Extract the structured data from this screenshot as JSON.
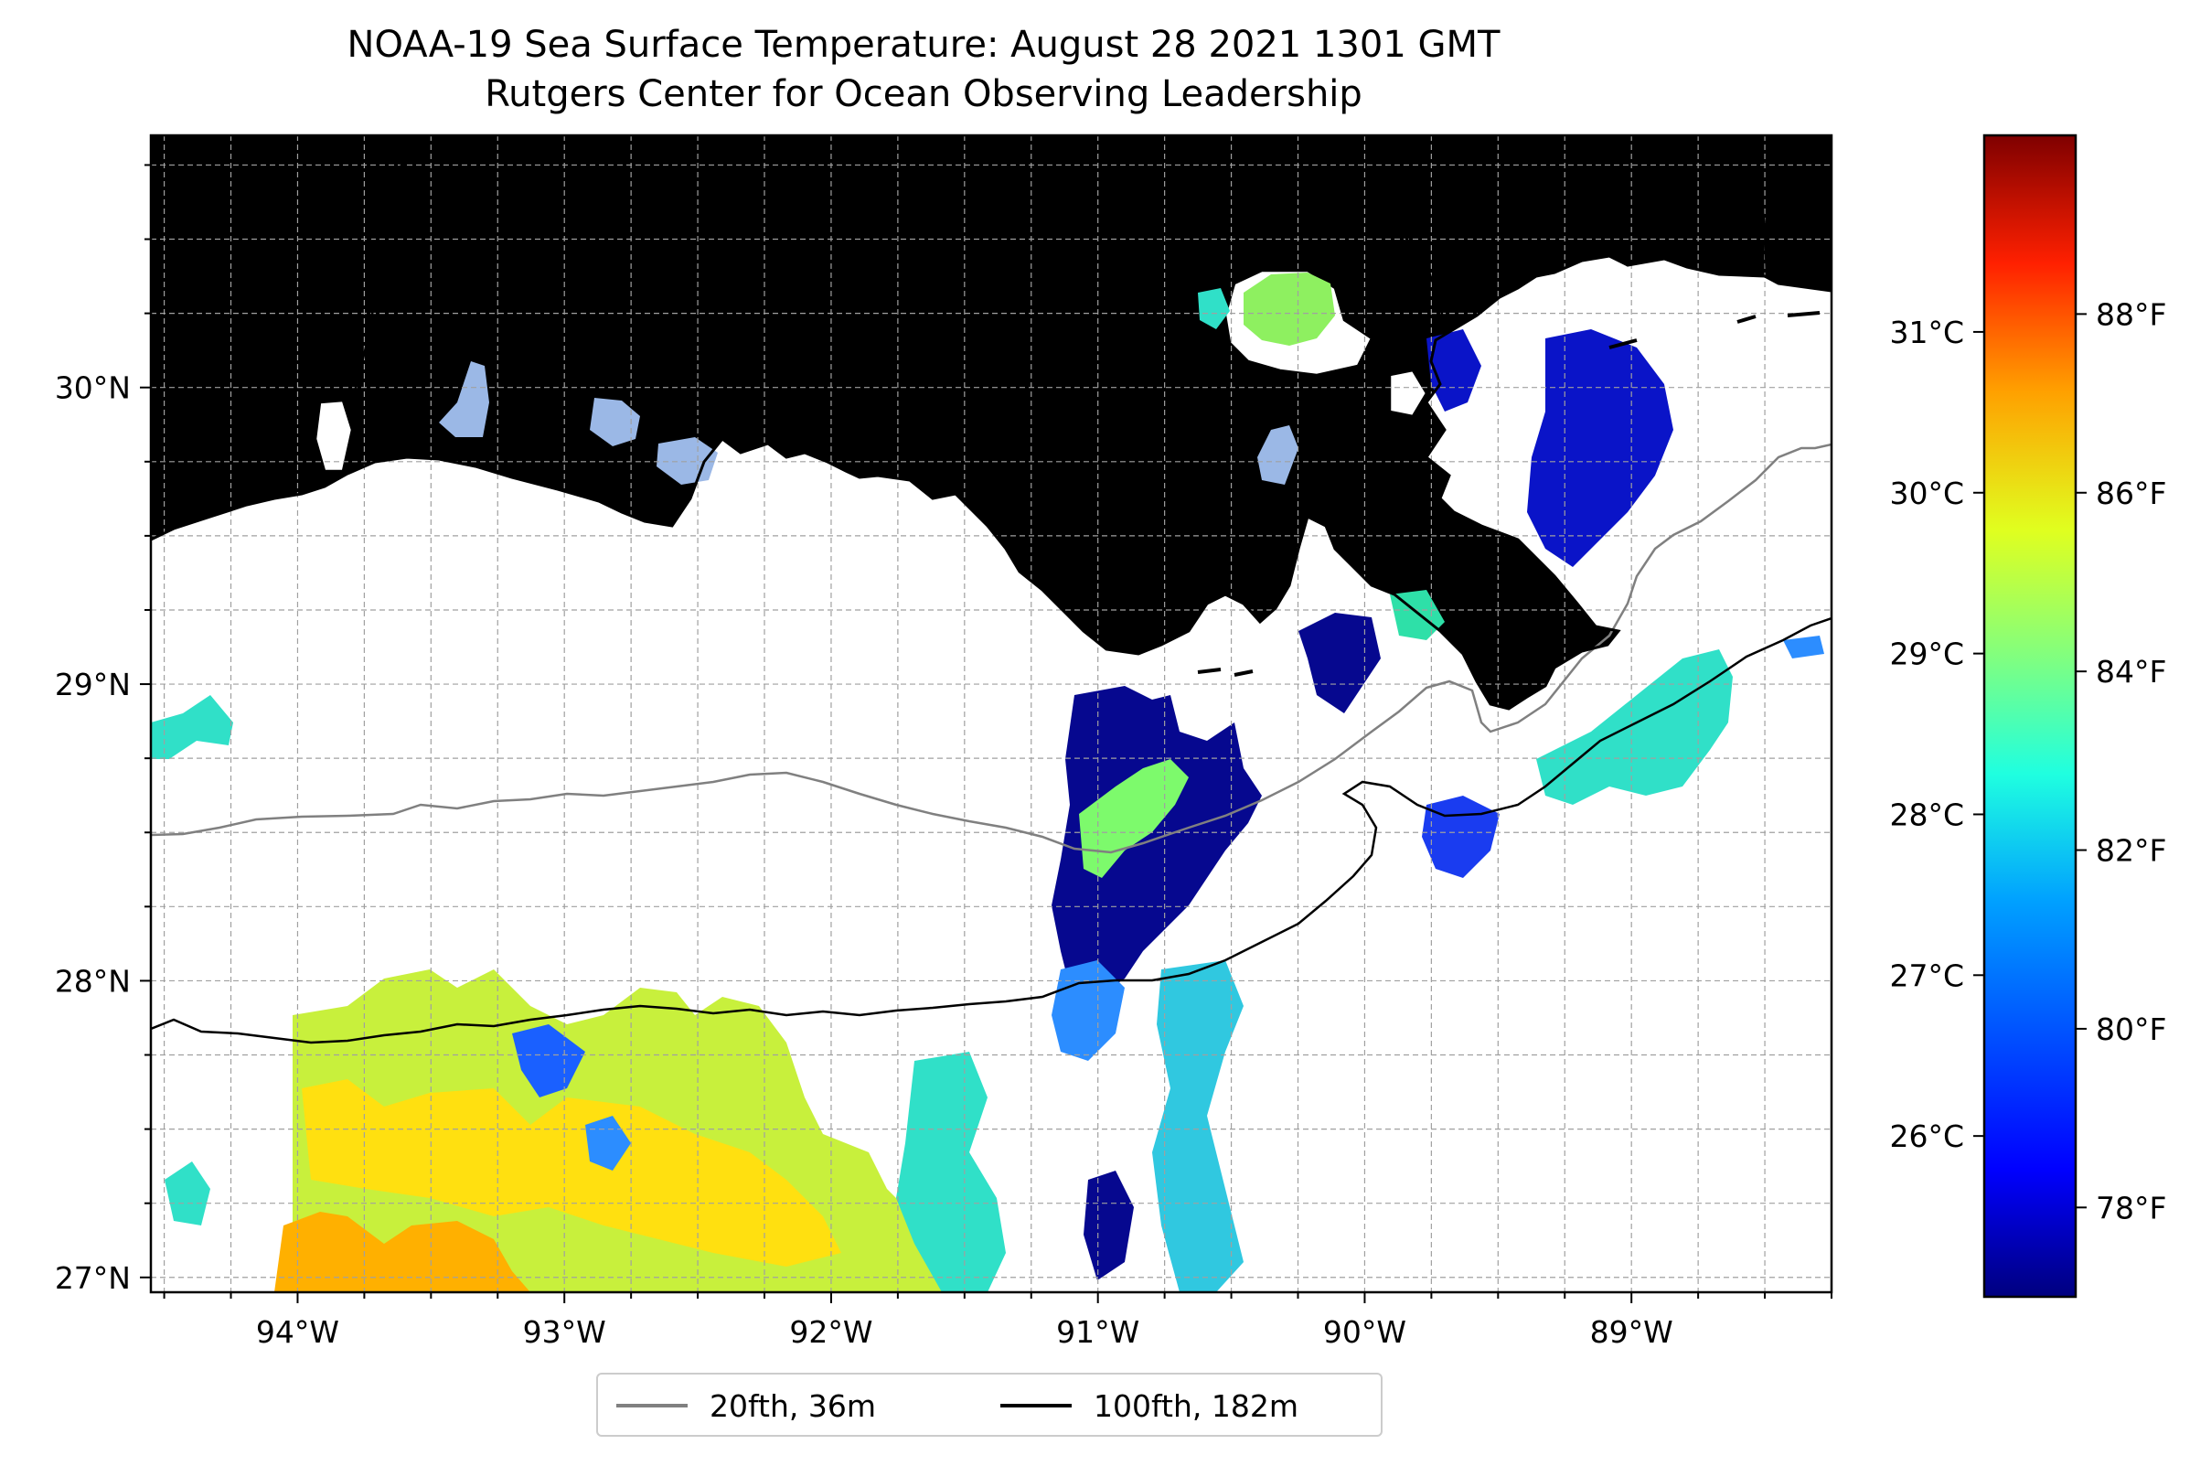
{
  "title": {
    "line1": "NOAA-19 Sea Surface Temperature: August 28 2021 1301 GMT",
    "line2": "Rutgers Center for Ocean Observing Leadership"
  },
  "map": {
    "extent_lon": [
      -94.55,
      -88.25
    ],
    "extent_lat": [
      26.95,
      30.85
    ],
    "lon_ticks": [
      {
        "value": -94,
        "label": "94°W"
      },
      {
        "value": -93,
        "label": "93°W"
      },
      {
        "value": -92,
        "label": "92°W"
      },
      {
        "value": -91,
        "label": "91°W"
      },
      {
        "value": -90,
        "label": "90°W"
      },
      {
        "value": -89,
        "label": "89°W"
      }
    ],
    "lat_ticks": [
      {
        "value": 27,
        "label": "27°N"
      },
      {
        "value": 28,
        "label": "28°N"
      },
      {
        "value": 29,
        "label": "29°N"
      },
      {
        "value": 30,
        "label": "30°N"
      }
    ],
    "grid": "dashed gray, every 0.25°",
    "colors": {
      "land": "#d2b48c",
      "lakes": "#9bb8e6",
      "coastline": "#000000",
      "isobath_20fth": "#808080",
      "isobath_100fth": "#000000"
    }
  },
  "colorbar": {
    "colormap": "jet",
    "celsius_ticks": [
      {
        "value": 26,
        "label": "26°C"
      },
      {
        "value": 27,
        "label": "27°C"
      },
      {
        "value": 28,
        "label": "28°C"
      },
      {
        "value": 29,
        "label": "29°C"
      },
      {
        "value": 30,
        "label": "30°C"
      },
      {
        "value": 31,
        "label": "31°C"
      }
    ],
    "fahrenheit_ticks": [
      {
        "value": 78,
        "label": "78°F"
      },
      {
        "value": 80,
        "label": "80°F"
      },
      {
        "value": 82,
        "label": "82°F"
      },
      {
        "value": 84,
        "label": "84°F"
      },
      {
        "value": 86,
        "label": "86°F"
      },
      {
        "value": 88,
        "label": "88°F"
      }
    ],
    "range_f": [
      77,
      90
    ]
  },
  "legend": {
    "items": [
      {
        "label": "20fth, 36m",
        "color": "#808080"
      },
      {
        "label": "100fth, 182m",
        "color": "#000000"
      }
    ]
  }
}
